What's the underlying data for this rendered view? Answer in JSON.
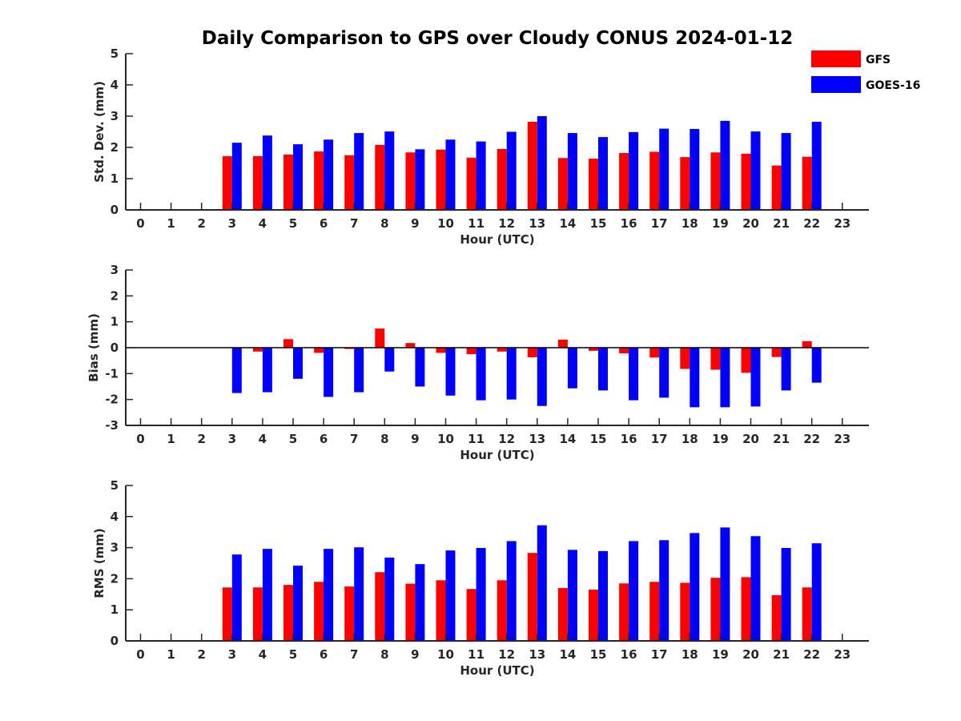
{
  "title": "Daily Comparison to GPS over Cloudy CONUS 2024-01-12",
  "colors": {
    "gfs": "#ff0000",
    "goes": "#0000ff",
    "axis": "#262626"
  },
  "legend": [
    {
      "name": "GFS",
      "color": "#ff0000"
    },
    {
      "name": "GOES-16",
      "color": "#0000ff"
    }
  ],
  "legend_placement": "top-right",
  "chart_data": [
    {
      "type": "bar",
      "ylabel": "Std. Dev. (mm)",
      "xlabel": "Hour (UTC)",
      "ylim": [
        0,
        5
      ],
      "yticks": [
        0,
        1,
        2,
        3,
        4,
        5
      ],
      "categories": [
        0,
        1,
        2,
        3,
        4,
        5,
        6,
        7,
        8,
        9,
        10,
        11,
        12,
        13,
        14,
        15,
        16,
        17,
        18,
        19,
        20,
        21,
        22,
        23
      ],
      "series": [
        {
          "name": "GFS",
          "values": [
            null,
            null,
            null,
            1.72,
            1.72,
            1.77,
            1.87,
            1.75,
            2.08,
            1.84,
            1.93,
            1.67,
            1.95,
            2.82,
            1.66,
            1.64,
            1.82,
            1.86,
            1.69,
            1.84,
            1.8,
            1.42,
            1.7,
            null
          ]
        },
        {
          "name": "GOES-16",
          "values": [
            null,
            null,
            null,
            2.15,
            2.38,
            2.1,
            2.25,
            2.46,
            2.51,
            1.94,
            2.25,
            2.19,
            2.5,
            3.0,
            2.46,
            2.33,
            2.49,
            2.6,
            2.59,
            2.85,
            2.51,
            2.46,
            2.82,
            null
          ]
        }
      ]
    },
    {
      "type": "bar",
      "ylabel": "Bias (mm)",
      "xlabel": "Hour (UTC)",
      "ylim": [
        -3,
        3
      ],
      "yticks": [
        -3,
        -2,
        -1,
        0,
        1,
        2,
        3
      ],
      "categories": [
        0,
        1,
        2,
        3,
        4,
        5,
        6,
        7,
        8,
        9,
        10,
        11,
        12,
        13,
        14,
        15,
        16,
        17,
        18,
        19,
        20,
        21,
        22,
        23
      ],
      "series": [
        {
          "name": "GFS",
          "values": [
            null,
            null,
            null,
            0.0,
            -0.15,
            0.33,
            -0.2,
            -0.05,
            0.74,
            0.18,
            -0.2,
            -0.25,
            -0.15,
            -0.37,
            0.31,
            -0.12,
            -0.22,
            -0.38,
            -0.82,
            -0.85,
            -0.97,
            -0.36,
            0.25,
            null
          ]
        },
        {
          "name": "GOES-16",
          "values": [
            null,
            null,
            null,
            -1.75,
            -1.72,
            -1.2,
            -1.9,
            -1.72,
            -0.92,
            -1.5,
            -1.85,
            -2.03,
            -2.0,
            -2.25,
            -1.57,
            -1.65,
            -2.03,
            -1.93,
            -2.3,
            -2.3,
            -2.27,
            -1.65,
            -1.35,
            null
          ]
        }
      ]
    },
    {
      "type": "bar",
      "ylabel": "RMS (mm)",
      "xlabel": "Hour (UTC)",
      "ylim": [
        0,
        5
      ],
      "yticks": [
        0,
        1,
        2,
        3,
        4,
        5
      ],
      "categories": [
        0,
        1,
        2,
        3,
        4,
        5,
        6,
        7,
        8,
        9,
        10,
        11,
        12,
        13,
        14,
        15,
        16,
        17,
        18,
        19,
        20,
        21,
        22,
        23
      ],
      "series": [
        {
          "name": "GFS",
          "values": [
            null,
            null,
            null,
            1.72,
            1.72,
            1.8,
            1.9,
            1.75,
            2.21,
            1.84,
            1.95,
            1.67,
            1.95,
            2.83,
            1.7,
            1.65,
            1.85,
            1.9,
            1.87,
            2.03,
            2.05,
            1.47,
            1.72,
            null
          ]
        },
        {
          "name": "GOES-16",
          "values": [
            null,
            null,
            null,
            2.78,
            2.96,
            2.42,
            2.96,
            3.01,
            2.68,
            2.47,
            2.91,
            2.99,
            3.21,
            3.72,
            2.93,
            2.89,
            3.21,
            3.24,
            3.47,
            3.65,
            3.37,
            2.99,
            3.14,
            null
          ]
        }
      ]
    }
  ]
}
